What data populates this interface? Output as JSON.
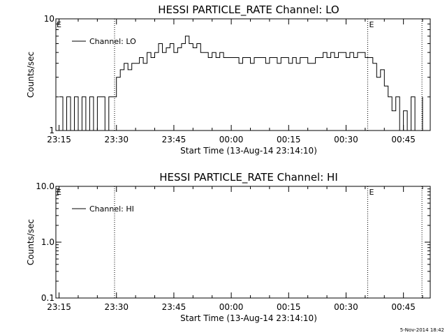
{
  "chart_data": [
    {
      "type": "line",
      "title": "HESSI PARTICLE_RATE Channel: LO",
      "xlabel": "Start Time (13-Aug-14 23:14:10)",
      "ylabel": "Counts/sec",
      "yscale": "log",
      "ylim": [
        1,
        10
      ],
      "y_tick_labels": [
        "1",
        "10"
      ],
      "x_range": [
        "23:14:10",
        "00:52:00"
      ],
      "x_tick_labels": [
        "23:15",
        "23:30",
        "23:45",
        "00:00",
        "00:15",
        "00:30",
        "00:45"
      ],
      "legend": {
        "label": "Channel: LO",
        "placement": "top-left"
      },
      "event_markers": [
        {
          "time": "23:29:30",
          "label": ""
        },
        {
          "time": "00:35:40",
          "label": "E"
        },
        {
          "time": "00:49:50",
          "label": ""
        }
      ],
      "edge_label": "E",
      "series": [
        {
          "name": "Channel: LO",
          "x": [
            "23:15",
            "23:16",
            "23:17",
            "23:18",
            "23:19",
            "23:20",
            "23:21",
            "23:22",
            "23:23",
            "23:24",
            "23:25",
            "23:26",
            "23:27",
            "23:28",
            "23:29",
            "23:30",
            "23:31",
            "23:32",
            "23:33",
            "23:34",
            "23:35",
            "23:36",
            "23:37",
            "23:38",
            "23:39",
            "23:40",
            "23:41",
            "23:42",
            "23:43",
            "23:44",
            "23:45",
            "23:46",
            "23:47",
            "23:48",
            "23:49",
            "23:50",
            "23:51",
            "23:52",
            "23:53",
            "23:54",
            "23:55",
            "23:56",
            "23:57",
            "23:58",
            "23:59",
            "00:00",
            "00:01",
            "00:02",
            "00:03",
            "00:04",
            "00:05",
            "00:06",
            "00:07",
            "00:08",
            "00:09",
            "00:10",
            "00:11",
            "00:12",
            "00:13",
            "00:14",
            "00:15",
            "00:16",
            "00:17",
            "00:18",
            "00:19",
            "00:20",
            "00:21",
            "00:22",
            "00:23",
            "00:24",
            "00:25",
            "00:26",
            "00:27",
            "00:28",
            "00:29",
            "00:30",
            "00:31",
            "00:32",
            "00:33",
            "00:34",
            "00:35",
            "00:36",
            "00:37",
            "00:38",
            "00:39",
            "00:40",
            "00:41",
            "00:42",
            "00:43",
            "00:44",
            "00:45",
            "00:46",
            "00:47",
            "00:48",
            "00:49",
            "00:50"
          ],
          "values": [
            2,
            1,
            2,
            1,
            2,
            1,
            2,
            1,
            2,
            1,
            2,
            2,
            1,
            2,
            2,
            3,
            3.5,
            4,
            3.5,
            4,
            4,
            4.5,
            4,
            5,
            4.5,
            5,
            6,
            5,
            5.5,
            6,
            5,
            5.5,
            6,
            7,
            6,
            5.5,
            6,
            5,
            5,
            4.5,
            5,
            4.5,
            5,
            4.5,
            4.5,
            4.5,
            4.5,
            4,
            4.5,
            4.5,
            4,
            4.5,
            4.5,
            4.5,
            4,
            4.5,
            4.5,
            4,
            4.5,
            4.5,
            4,
            4.5,
            4,
            4.5,
            4.5,
            4,
            4,
            4.5,
            4.5,
            5,
            4.5,
            5,
            4.5,
            5,
            5,
            4.5,
            5,
            4.5,
            5,
            5,
            4.5,
            4.5,
            4,
            3,
            3.5,
            2.5,
            2,
            1.5,
            2,
            1,
            1.5,
            1,
            2,
            1,
            1,
            2
          ]
        }
      ]
    },
    {
      "type": "line",
      "title": "HESSI PARTICLE_RATE Channel: HI",
      "xlabel": "Start Time (13-Aug-14 23:14:10)",
      "ylabel": "Counts/sec",
      "yscale": "log",
      "ylim": [
        0.1,
        10
      ],
      "y_tick_labels": [
        "10.0",
        "1.0",
        "0.1"
      ],
      "x_range": [
        "23:14:10",
        "00:52:00"
      ],
      "x_tick_labels": [
        "23:15",
        "23:30",
        "23:45",
        "00:00",
        "00:15",
        "00:30",
        "00:45"
      ],
      "legend": {
        "label": "Channel: HI",
        "placement": "top-left"
      },
      "event_markers": [
        {
          "time": "23:29:30",
          "label": ""
        },
        {
          "time": "00:35:40",
          "label": "E"
        },
        {
          "time": "00:49:50",
          "label": ""
        }
      ],
      "edge_label": "E",
      "series": [
        {
          "name": "Channel: HI",
          "x": [],
          "values": []
        }
      ]
    }
  ],
  "footer": {
    "timestamp": "5-Nov-2014 18:42"
  }
}
